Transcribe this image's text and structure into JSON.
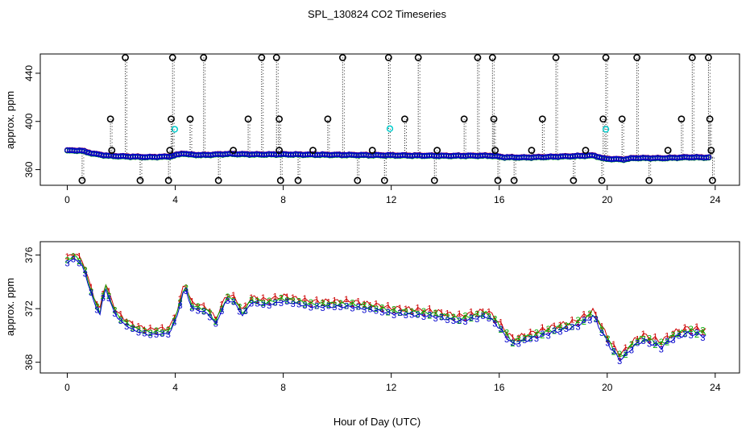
{
  "figure": {
    "title": "SPL_130824  CO2 Timeseries",
    "xlabel": "Hour of Day (UTC)"
  },
  "colors": {
    "black": "#000000",
    "red": "#cc0000",
    "green": "#00b000",
    "blue": "#0000cc",
    "cyan": "#00cccc"
  },
  "chart_data": [
    {
      "type": "scatter",
      "panel": "top",
      "ylabel": "approx. ppm",
      "xlim": [
        -1,
        24.9
      ],
      "ylim": [
        347,
        456
      ],
      "xticks": [
        0,
        4,
        8,
        12,
        16,
        20,
        24
      ],
      "yticks": [
        360,
        400,
        440
      ],
      "series_base": [
        [
          0.0,
          375.8
        ],
        [
          0.5,
          375.8
        ],
        [
          1.0,
          373.0
        ],
        [
          1.5,
          371.5
        ],
        [
          2.0,
          371.0
        ],
        [
          3.0,
          370.3
        ],
        [
          3.8,
          370.8
        ],
        [
          4.3,
          373.5
        ],
        [
          4.5,
          372.5
        ],
        [
          5.0,
          372.0
        ],
        [
          6.0,
          373.0
        ],
        [
          7.0,
          372.5
        ],
        [
          8.0,
          372.6
        ],
        [
          10.0,
          372.2
        ],
        [
          12.0,
          371.8
        ],
        [
          14.0,
          371.4
        ],
        [
          15.7,
          371.5
        ],
        [
          16.2,
          370.2
        ],
        [
          17.0,
          370.0
        ],
        [
          18.0,
          370.6
        ],
        [
          19.5,
          371.7
        ],
        [
          19.9,
          369.0
        ],
        [
          20.6,
          368.4
        ],
        [
          21.0,
          369.6
        ],
        [
          22.0,
          369.4
        ],
        [
          23.0,
          370.2
        ],
        [
          23.7,
          370.0
        ]
      ],
      "spikes_high": [
        2.15,
        3.9,
        5.05,
        7.2,
        7.75,
        10.2,
        11.9,
        13.0,
        15.2,
        15.75,
        18.1,
        19.95,
        21.1,
        23.15,
        23.75
      ],
      "spikes_mid": [
        1.6,
        3.85,
        4.55,
        6.7,
        7.85,
        9.65,
        12.5,
        14.7,
        15.8,
        17.6,
        19.85,
        20.55,
        22.75,
        23.8
      ],
      "spikes_low": [
        0.55,
        2.7,
        3.75,
        5.6,
        7.9,
        8.55,
        10.75,
        11.75,
        13.6,
        15.95,
        16.55,
        18.75,
        19.8,
        21.55,
        23.9
      ],
      "spikes_small": [
        1.65,
        3.8,
        6.15,
        7.85,
        9.1,
        11.3,
        13.7,
        15.85,
        17.2,
        19.2,
        22.25,
        23.85
      ],
      "spike_values": {
        "high": 453,
        "mid": 402,
        "low": 351,
        "small": 376
      },
      "cyan_points": [
        [
          3.98,
          393.5
        ],
        [
          11.95,
          394.0
        ],
        [
          19.95,
          393.5
        ]
      ]
    },
    {
      "type": "scatter",
      "panel": "bottom",
      "ylabel": "approx. ppm",
      "xlim": [
        -1,
        24.9
      ],
      "ylim": [
        367.2,
        377.0
      ],
      "xticks": [
        0,
        4,
        8,
        12,
        16,
        20,
        24
      ],
      "yticks": [
        368,
        372,
        376
      ],
      "point_labels": [
        "1",
        "2",
        "3"
      ],
      "series_base": [
        [
          0.0,
          375.6
        ],
        [
          0.3,
          375.9
        ],
        [
          0.6,
          375.2
        ],
        [
          0.8,
          373.8
        ],
        [
          1.0,
          372.6
        ],
        [
          1.2,
          371.6
        ],
        [
          1.4,
          373.8
        ],
        [
          1.6,
          372.6
        ],
        [
          1.8,
          371.6
        ],
        [
          2.1,
          371.0
        ],
        [
          2.5,
          370.5
        ],
        [
          3.0,
          370.2
        ],
        [
          3.8,
          370.3
        ],
        [
          4.1,
          371.8
        ],
        [
          4.35,
          373.8
        ],
        [
          4.6,
          372.2
        ],
        [
          5.2,
          371.8
        ],
        [
          5.5,
          371.0
        ],
        [
          5.9,
          372.8
        ],
        [
          6.2,
          372.6
        ],
        [
          6.5,
          371.6
        ],
        [
          6.8,
          372.6
        ],
        [
          7.4,
          372.4
        ],
        [
          8.0,
          372.7
        ],
        [
          9.0,
          372.3
        ],
        [
          10.5,
          372.3
        ],
        [
          11.5,
          372.0
        ],
        [
          12.0,
          371.8
        ],
        [
          13.5,
          371.6
        ],
        [
          14.5,
          371.2
        ],
        [
          15.5,
          371.6
        ],
        [
          15.8,
          371.2
        ],
        [
          16.2,
          370.2
        ],
        [
          16.5,
          369.5
        ],
        [
          17.0,
          369.8
        ],
        [
          18.0,
          370.4
        ],
        [
          18.8,
          370.8
        ],
        [
          19.5,
          371.6
        ],
        [
          19.8,
          370.4
        ],
        [
          20.2,
          369.0
        ],
        [
          20.5,
          368.3
        ],
        [
          20.9,
          369.2
        ],
        [
          21.3,
          369.8
        ],
        [
          22.0,
          369.3
        ],
        [
          22.5,
          370.0
        ],
        [
          23.0,
          370.3
        ],
        [
          23.5,
          370.2
        ],
        [
          23.8,
          370.0
        ]
      ]
    }
  ]
}
